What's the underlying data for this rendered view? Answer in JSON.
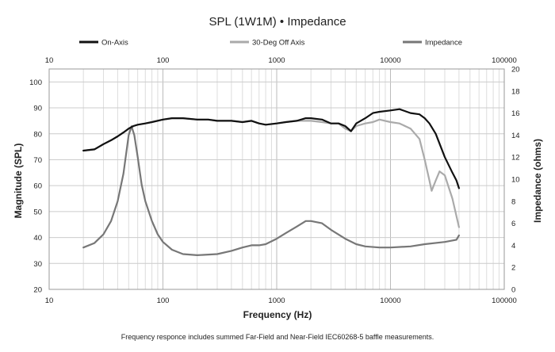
{
  "chart_data": {
    "type": "line",
    "title": "SPL (1W1M) • Impedance",
    "caption": "Frequency responce includes summed Far-Field and Near-Field IEC60268-5 baffle measurements.",
    "xlabel": "Frequency (Hz)",
    "ylabel": "Magnitude (SPL)",
    "y2label": "Impedance (ohms)",
    "xscale": "log",
    "xlim": [
      10,
      100000
    ],
    "ylim": [
      20,
      105
    ],
    "y2lim": [
      0,
      20
    ],
    "x_tick_labels": [
      "10",
      "100",
      "1000",
      "10000",
      "100000"
    ],
    "y_tick_labels": [
      "20",
      "30",
      "40",
      "50",
      "60",
      "70",
      "80",
      "90",
      "100"
    ],
    "y2_tick_labels": [
      "0",
      "2",
      "4",
      "6",
      "8",
      "10",
      "12",
      "14",
      "16",
      "18",
      "20"
    ],
    "grid": true,
    "legend_position": "top",
    "series": [
      {
        "name": "On-Axis",
        "axis": "left",
        "color": "#111111",
        "points": [
          [
            20,
            73.5
          ],
          [
            25,
            74
          ],
          [
            30,
            76
          ],
          [
            35,
            77.5
          ],
          [
            40,
            79
          ],
          [
            45,
            80.5
          ],
          [
            50,
            82
          ],
          [
            55,
            83
          ],
          [
            60,
            83.5
          ],
          [
            70,
            84
          ],
          [
            80,
            84.5
          ],
          [
            100,
            85.5
          ],
          [
            120,
            86
          ],
          [
            150,
            86
          ],
          [
            200,
            85.5
          ],
          [
            250,
            85.5
          ],
          [
            300,
            85
          ],
          [
            400,
            85
          ],
          [
            500,
            84.5
          ],
          [
            600,
            85
          ],
          [
            700,
            84
          ],
          [
            800,
            83.5
          ],
          [
            1000,
            84
          ],
          [
            1200,
            84.5
          ],
          [
            1500,
            85
          ],
          [
            1800,
            86
          ],
          [
            2000,
            86
          ],
          [
            2500,
            85.5
          ],
          [
            3000,
            84
          ],
          [
            3500,
            84
          ],
          [
            4000,
            83
          ],
          [
            4500,
            81
          ],
          [
            5000,
            84
          ],
          [
            6000,
            86
          ],
          [
            7000,
            88
          ],
          [
            8000,
            88.5
          ],
          [
            10000,
            89
          ],
          [
            12000,
            89.5
          ],
          [
            15000,
            88
          ],
          [
            18000,
            87.5
          ],
          [
            20000,
            86
          ],
          [
            22000,
            84
          ],
          [
            25000,
            80
          ],
          [
            30000,
            71
          ],
          [
            35000,
            65
          ],
          [
            38000,
            62
          ],
          [
            40000,
            59
          ]
        ]
      },
      {
        "name": "30-Deg Off Axis",
        "axis": "left",
        "color": "#aaaaaa",
        "points": [
          [
            20,
            73.5
          ],
          [
            25,
            74
          ],
          [
            30,
            76
          ],
          [
            35,
            77.5
          ],
          [
            40,
            79
          ],
          [
            45,
            80.5
          ],
          [
            50,
            82
          ],
          [
            55,
            83
          ],
          [
            60,
            83.5
          ],
          [
            70,
            84
          ],
          [
            80,
            84.5
          ],
          [
            100,
            85.5
          ],
          [
            120,
            86
          ],
          [
            150,
            86
          ],
          [
            200,
            85.5
          ],
          [
            250,
            85.5
          ],
          [
            300,
            85
          ],
          [
            400,
            85
          ],
          [
            500,
            84.5
          ],
          [
            600,
            85
          ],
          [
            700,
            84
          ],
          [
            800,
            83.5
          ],
          [
            1000,
            84
          ],
          [
            1200,
            84.5
          ],
          [
            1500,
            85
          ],
          [
            2000,
            85
          ],
          [
            2500,
            84.5
          ],
          [
            3000,
            84
          ],
          [
            3500,
            84
          ],
          [
            4000,
            82
          ],
          [
            4500,
            81
          ],
          [
            5000,
            83
          ],
          [
            6000,
            84
          ],
          [
            7000,
            84.5
          ],
          [
            8000,
            85.5
          ],
          [
            10000,
            84.5
          ],
          [
            12000,
            84
          ],
          [
            15000,
            82
          ],
          [
            18000,
            78
          ],
          [
            20000,
            70
          ],
          [
            22000,
            62
          ],
          [
            23000,
            58
          ],
          [
            25000,
            62
          ],
          [
            27000,
            65.5
          ],
          [
            30000,
            64
          ],
          [
            35000,
            55
          ],
          [
            40000,
            44
          ]
        ]
      },
      {
        "name": "Impedance",
        "axis": "right",
        "color": "#777777",
        "points": [
          [
            20,
            3.8
          ],
          [
            25,
            4.2
          ],
          [
            30,
            5.0
          ],
          [
            35,
            6.2
          ],
          [
            40,
            8.0
          ],
          [
            45,
            10.5
          ],
          [
            50,
            14.0
          ],
          [
            53,
            14.8
          ],
          [
            56,
            14.0
          ],
          [
            60,
            12.0
          ],
          [
            65,
            9.5
          ],
          [
            70,
            8.0
          ],
          [
            80,
            6.2
          ],
          [
            90,
            5.0
          ],
          [
            100,
            4.3
          ],
          [
            120,
            3.6
          ],
          [
            150,
            3.2
          ],
          [
            200,
            3.1
          ],
          [
            300,
            3.2
          ],
          [
            400,
            3.5
          ],
          [
            500,
            3.8
          ],
          [
            600,
            4.0
          ],
          [
            700,
            4.0
          ],
          [
            800,
            4.1
          ],
          [
            1000,
            4.6
          ],
          [
            1200,
            5.1
          ],
          [
            1500,
            5.7
          ],
          [
            1800,
            6.2
          ],
          [
            2000,
            6.2
          ],
          [
            2500,
            6.0
          ],
          [
            3000,
            5.4
          ],
          [
            4000,
            4.6
          ],
          [
            5000,
            4.1
          ],
          [
            6000,
            3.9
          ],
          [
            8000,
            3.8
          ],
          [
            10000,
            3.8
          ],
          [
            15000,
            3.9
          ],
          [
            20000,
            4.1
          ],
          [
            30000,
            4.3
          ],
          [
            38000,
            4.5
          ],
          [
            40000,
            4.9
          ]
        ]
      }
    ]
  }
}
